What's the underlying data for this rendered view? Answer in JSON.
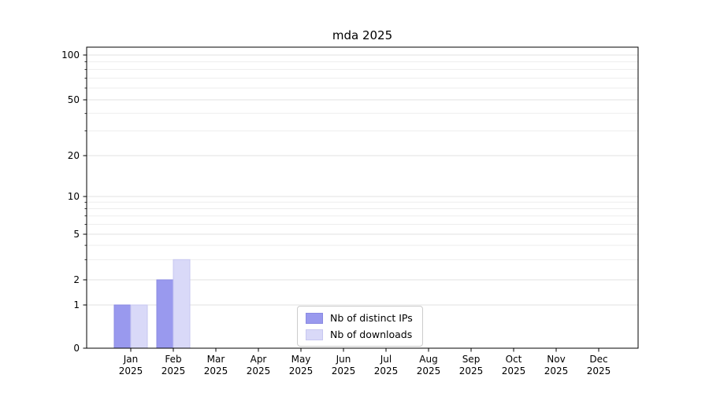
{
  "chart_data": {
    "type": "bar",
    "title": "mda 2025",
    "year": "2025",
    "categories": [
      "Jan",
      "Feb",
      "Mar",
      "Apr",
      "May",
      "Jun",
      "Jul",
      "Aug",
      "Sep",
      "Oct",
      "Nov",
      "Dec"
    ],
    "series": [
      {
        "name": "Nb of distinct IPs",
        "color": "#9999ee",
        "edge_color": "#8a8ae2",
        "values": [
          1,
          2,
          0,
          0,
          0,
          0,
          0,
          0,
          0,
          0,
          0,
          0
        ]
      },
      {
        "name": "Nb of downloads",
        "color": "#d9d9f8",
        "edge_color": "#c7c7f0",
        "values": [
          1,
          3,
          0,
          0,
          0,
          0,
          0,
          0,
          0,
          0,
          0,
          0
        ]
      }
    ],
    "y_axis": {
      "scale": "log-like",
      "range": [
        0,
        100
      ],
      "ticks": [
        0,
        1,
        2,
        5,
        10,
        20,
        50,
        100
      ],
      "minor_gridlines": [
        3,
        4,
        6,
        7,
        8,
        9,
        30,
        40,
        60,
        70,
        80,
        90
      ]
    },
    "x_axis": {
      "label_line2": "2025"
    },
    "legend": {
      "position": "bottom-center"
    },
    "grid": true
  }
}
